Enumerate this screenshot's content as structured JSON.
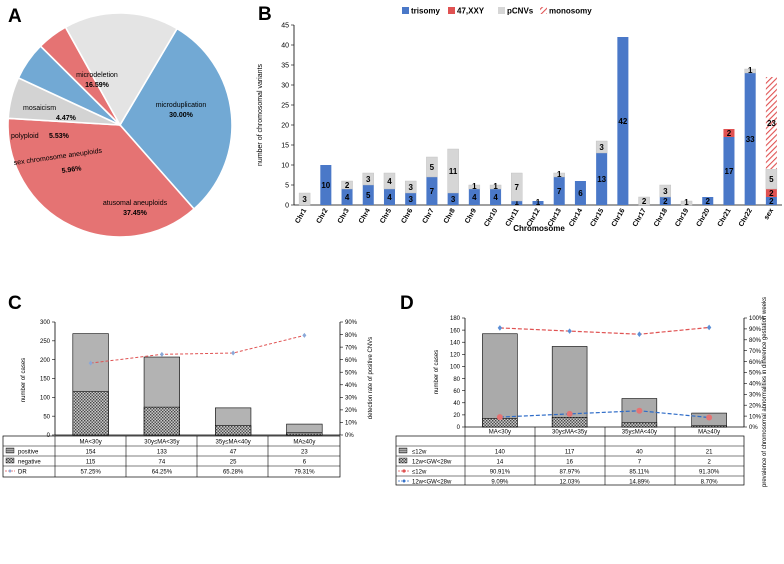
{
  "panel_labels": {
    "a": "A",
    "b": "B",
    "c": "C",
    "d": "D"
  },
  "chart_data": [
    {
      "type": "pie",
      "panel": "A",
      "slices": [
        {
          "label": "microduplication",
          "percent": "30.00%",
          "value": 30.0,
          "color": "#72a9d4"
        },
        {
          "label": "atusomal aneuploids",
          "percent": "37.45%",
          "value": 37.45,
          "color": "#e57373"
        },
        {
          "label": "sex chromosome aneuploids",
          "percent": "5.96%",
          "value": 5.96,
          "color": "#d3d3d3"
        },
        {
          "label": "polyploid",
          "percent": "5.53%",
          "value": 5.53,
          "color": "#72a9d4"
        },
        {
          "label": "mosaicism",
          "percent": "4.47%",
          "value": 4.47,
          "color": "#e57373"
        },
        {
          "label": "microdeletion",
          "percent": "16.59%",
          "value": 16.59,
          "color": "#e4e4e4"
        }
      ]
    },
    {
      "type": "bar",
      "panel": "B",
      "stacked": true,
      "categories": [
        "Chr1",
        "Chr2",
        "Chr3",
        "Chr4",
        "Chr5",
        "Chr6",
        "Chr7",
        "Chr8",
        "Chr9",
        "Chr10",
        "Chr11",
        "Chr12",
        "Chr13",
        "Chr14",
        "Chr15",
        "Chr16",
        "Chr17",
        "Chr18",
        "Chr19",
        "Chr20",
        "Chr21",
        "Chr22",
        "sex"
      ],
      "series": [
        {
          "name": "trisomy",
          "color": "#4a78c8",
          "values": [
            0,
            10,
            4,
            5,
            4,
            3,
            7,
            3,
            4,
            4,
            1,
            1,
            7,
            6,
            13,
            42,
            0,
            2,
            0,
            2,
            17,
            33,
            2
          ]
        },
        {
          "name": "47,XXY",
          "color": "#e05252",
          "values": [
            0,
            0,
            0,
            0,
            0,
            0,
            0,
            0,
            0,
            0,
            0,
            0,
            0,
            0,
            0,
            0,
            0,
            0,
            0,
            0,
            2,
            0,
            2
          ]
        },
        {
          "name": "pCNVs",
          "color": "#d6d6d6",
          "values": [
            3,
            0,
            2,
            3,
            4,
            3,
            5,
            11,
            1,
            1,
            7,
            0,
            1,
            0,
            3,
            0,
            2,
            3,
            1,
            0,
            0,
            1,
            5
          ]
        },
        {
          "name": "monosomy",
          "color": "#e05252",
          "values": [
            0,
            0,
            0,
            0,
            0,
            0,
            0,
            0,
            0,
            0,
            0,
            0,
            0,
            0,
            0,
            0,
            0,
            0,
            0,
            0,
            0,
            0,
            23
          ]
        }
      ],
      "title": "",
      "xlabel": "Chromosome",
      "ylabel": "number of chromosomal variants",
      "ylim": [
        0,
        45
      ],
      "yticks": [
        "0",
        "5",
        "10",
        "15",
        "20",
        "25",
        "30",
        "35",
        "40",
        "45"
      ]
    },
    {
      "type": "bar",
      "panel": "C",
      "stacked": true,
      "categories": [
        "MA<30y",
        "30y≤MA<35y",
        "35y≤MA<40y",
        "MA≥40y"
      ],
      "series": [
        {
          "name": "positive",
          "values": [
            154,
            133,
            47,
            23
          ]
        },
        {
          "name": "negative",
          "values": [
            115,
            74,
            25,
            6
          ]
        }
      ],
      "line": {
        "name": "DR",
        "values": [
          57.25,
          64.25,
          65.28,
          79.31
        ],
        "labels": [
          "57.25%",
          "64.25%",
          "65.28%",
          "79.31%"
        ]
      },
      "ylabel": "number of cases",
      "y2label": "detection rate of positive CNVs",
      "ylim": [
        0,
        300
      ],
      "y2lim": [
        0,
        90
      ],
      "yticks": [
        "0",
        "50",
        "100",
        "150",
        "200",
        "250",
        "300"
      ],
      "y2ticks": [
        "0%",
        "10%",
        "20%",
        "30%",
        "40%",
        "50%",
        "60%",
        "70%",
        "80%",
        "90%"
      ],
      "table": {
        "rows": [
          {
            "label": "positive",
            "cells": [
              "154",
              "133",
              "47",
              "23"
            ]
          },
          {
            "label": "negative",
            "cells": [
              "115",
              "74",
              "25",
              "6"
            ]
          },
          {
            "label": "DR",
            "cells": [
              "57.25%",
              "64.25%",
              "65.28%",
              "79.31%"
            ]
          }
        ]
      }
    },
    {
      "type": "bar",
      "panel": "D",
      "stacked": true,
      "categories": [
        "MA<30y",
        "30y≤MA<35y",
        "35y≤MA<40y",
        "MA≥40y"
      ],
      "series": [
        {
          "name": "≤12w",
          "values": [
            140,
            117,
            40,
            21
          ]
        },
        {
          "name": "12w<GW<28w",
          "values": [
            14,
            16,
            7,
            2
          ]
        }
      ],
      "lines": [
        {
          "name": "≤12w",
          "values": [
            90.91,
            87.97,
            85.11,
            91.3
          ],
          "labels": [
            "90.91%",
            "87.97%",
            "85.11%",
            "91.30%"
          ],
          "color": "#e05252"
        },
        {
          "name": "12w<GW<28w",
          "values": [
            9.09,
            12.03,
            14.89,
            8.7
          ],
          "labels": [
            "9.09%",
            "12.03%",
            "14.89%",
            "8.70%"
          ],
          "color": "#2e6cc8"
        }
      ],
      "ylabel": "number of cases",
      "y2label": "prevalence of chromosomal abnormalities in difference gestation weeks",
      "ylim": [
        0,
        180
      ],
      "y2lim": [
        0,
        100
      ],
      "yticks": [
        "0",
        "20",
        "40",
        "60",
        "80",
        "100",
        "120",
        "140",
        "160",
        "180"
      ],
      "y2ticks": [
        "0%",
        "10%",
        "20%",
        "30%",
        "40%",
        "50%",
        "60%",
        "70%",
        "80%",
        "90%",
        "100%"
      ],
      "table": {
        "rows": [
          {
            "label": "≤12w",
            "cells": [
              "140",
              "117",
              "40",
              "21"
            ]
          },
          {
            "label": "12w<GW<28w",
            "cells": [
              "14",
              "16",
              "7",
              "2"
            ]
          },
          {
            "label": "≤12w",
            "cells": [
              "90.91%",
              "87.97%",
              "85.11%",
              "91.30%"
            ]
          },
          {
            "label": "12w<GW<28w",
            "cells": [
              "9.09%",
              "12.03%",
              "14.89%",
              "8.70%"
            ]
          }
        ]
      }
    }
  ]
}
